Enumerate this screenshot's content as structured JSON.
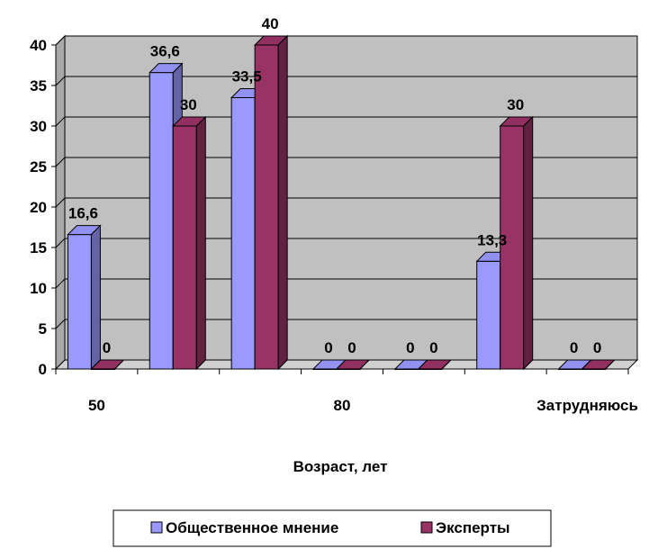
{
  "chart_data": {
    "type": "bar",
    "style": "3d-clustered",
    "categories": [
      "50",
      "",
      "",
      "80",
      "",
      "",
      "Затрудняюсь"
    ],
    "series": [
      {
        "name": "Общественное мнение",
        "color": "#9999ff",
        "values": [
          16.6,
          36.6,
          33.5,
          0,
          0,
          13.3,
          0
        ],
        "labels": [
          "16,6",
          "36,6",
          "33,5",
          "0",
          "0",
          "13,3",
          "0"
        ]
      },
      {
        "name": "Эксперты",
        "color": "#993366",
        "values": [
          0,
          30,
          40,
          0,
          0,
          30,
          0
        ],
        "labels": [
          "0",
          "30",
          "40",
          "0",
          "0",
          "30",
          "0"
        ]
      }
    ],
    "xlabel": "Возраст, лет",
    "ylabel": "",
    "ylim": [
      0,
      40
    ],
    "yticks": [
      0,
      5,
      10,
      15,
      20,
      25,
      30,
      35,
      40
    ],
    "grid": true,
    "plot_background": "#c0c0c0",
    "legend_position": "bottom"
  }
}
